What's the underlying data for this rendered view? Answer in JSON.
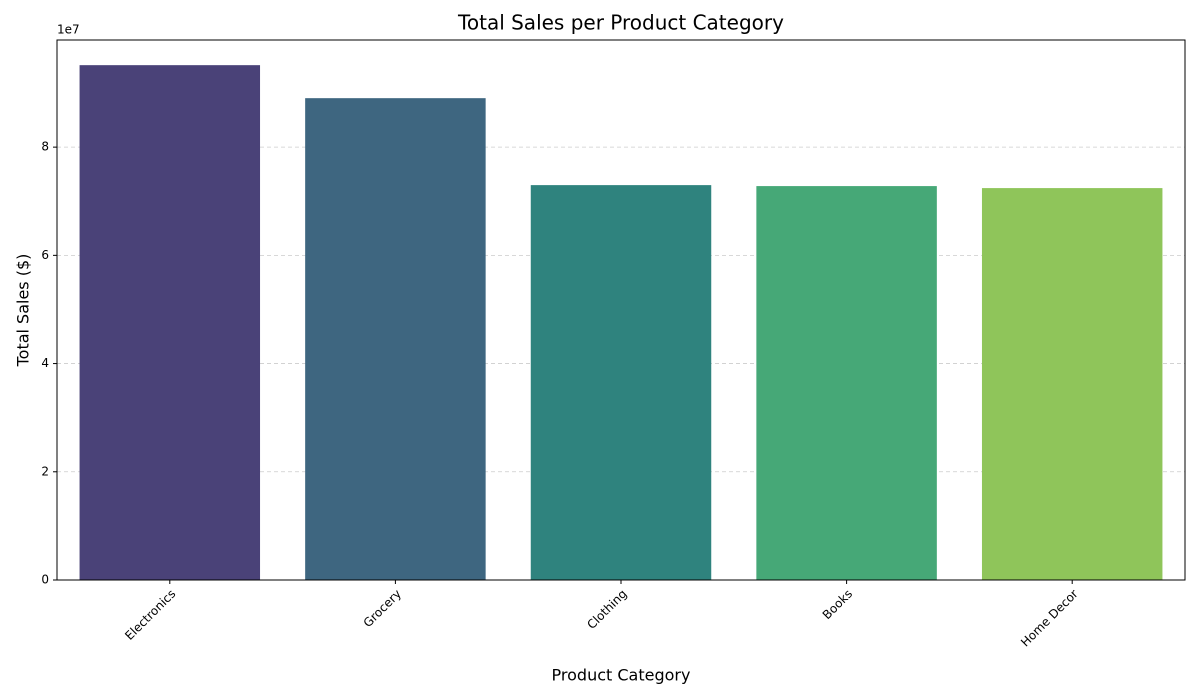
{
  "chart_data": {
    "type": "bar",
    "title": "Total Sales per Product Category",
    "x_label": "Product Category",
    "y_label": "Total Sales ($)",
    "y_offset_label": "1e7",
    "categories": [
      "Electronics",
      "Grocery",
      "Clothing",
      "Books",
      "Home Decor"
    ],
    "values": [
      95150000,
      89050000,
      72980000,
      72800000,
      72430000
    ],
    "colors": [
      "#4a4278",
      "#3e6680",
      "#2f837e",
      "#46a877",
      "#8fc55a"
    ],
    "ylim": [
      0,
      99800000
    ],
    "yticks": [
      0,
      {
        "value": 20000000,
        "label": "2"
      },
      {
        "value": 40000000,
        "label": "4"
      },
      {
        "value": 60000000,
        "label": "6"
      },
      {
        "value": 80000000,
        "label": "8"
      }
    ],
    "grid": true
  }
}
